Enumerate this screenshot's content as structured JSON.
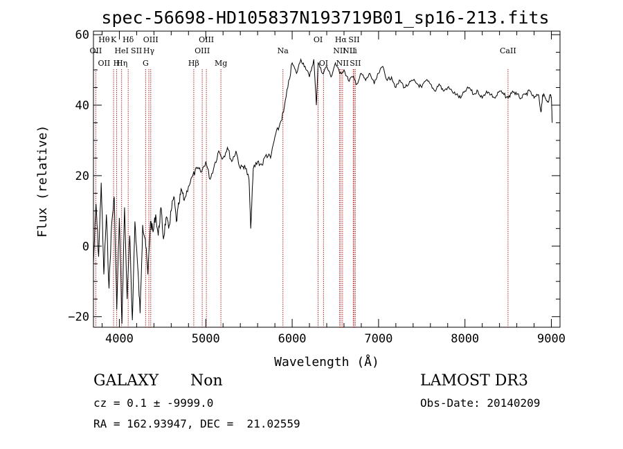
{
  "chart_data": {
    "type": "line",
    "title": "spec-56698-HD105837N193719B01_sp16-213.fits",
    "xlabel": "Wavelength (Å)",
    "ylabel": "Flux (relative)",
    "xlim": [
      3700,
      9100
    ],
    "ylim": [
      -23,
      61
    ],
    "xticks": [
      4000,
      5000,
      6000,
      7000,
      8000,
      9000
    ],
    "yticks": [
      -20,
      0,
      20,
      40,
      60
    ],
    "grid": false,
    "series": [
      {
        "x": [
          3700,
          3730,
          3760,
          3790,
          3820,
          3850,
          3880,
          3910,
          3940,
          3970,
          4000,
          4030,
          4060,
          4090,
          4120,
          4150,
          4180,
          4210,
          4240,
          4270,
          4300,
          4330,
          4360,
          4390,
          4420,
          4450,
          4480,
          4510,
          4540,
          4570,
          4600,
          4630,
          4660,
          4690,
          4720,
          4750,
          4800,
          4850,
          4900,
          4950,
          5000,
          5050,
          5100,
          5150,
          5200,
          5250,
          5300,
          5350,
          5400,
          5450,
          5500,
          5520,
          5550,
          5600,
          5650,
          5700,
          5750,
          5800,
          5850,
          5900,
          5950,
          6000,
          6050,
          6100,
          6150,
          6200,
          6250,
          6280,
          6300,
          6350,
          6400,
          6450,
          6500,
          6550,
          6600,
          6650,
          6700,
          6750,
          6800,
          6850,
          6900,
          6950,
          7000,
          7050,
          7100,
          7150,
          7200,
          7250,
          7300,
          7350,
          7400,
          7450,
          7500,
          7550,
          7600,
          7650,
          7700,
          7750,
          7800,
          7850,
          7900,
          7950,
          8000,
          8050,
          8100,
          8150,
          8200,
          8250,
          8300,
          8350,
          8400,
          8450,
          8500,
          8550,
          8600,
          8650,
          8700,
          8750,
          8800,
          8850,
          8880,
          8900,
          8930,
          8960,
          8990,
          9000,
          9010
        ],
        "values": [
          -5,
          12,
          -3,
          18,
          -8,
          9,
          -12,
          6,
          14,
          -18,
          8,
          -22,
          11,
          -15,
          3,
          -21,
          7,
          -5,
          -19,
          6,
          2,
          -8,
          7,
          4,
          9,
          3,
          11,
          2,
          8,
          5,
          10,
          14,
          7,
          12,
          16,
          13,
          17,
          20,
          22,
          21,
          24,
          19,
          23,
          27,
          25,
          28,
          24,
          27,
          22,
          23,
          19,
          5,
          22,
          24,
          23,
          26,
          25,
          31,
          34,
          38,
          45,
          52,
          49,
          53,
          51,
          48,
          53,
          40,
          52,
          49,
          51,
          48,
          52,
          49,
          50,
          47,
          48,
          46,
          49,
          47,
          49,
          46,
          49,
          51,
          47,
          48,
          45,
          47,
          45,
          46,
          47,
          46,
          45,
          47,
          46,
          44,
          46,
          44,
          45,
          44,
          43,
          42,
          44,
          45,
          43,
          44,
          42,
          44,
          43,
          42,
          44,
          43,
          42,
          44,
          43,
          42,
          43,
          44,
          42,
          43,
          38,
          43,
          42,
          41,
          43,
          42,
          35
        ]
      }
    ],
    "lines": [
      {
        "x": 3727,
        "label": "OII",
        "row": 2
      },
      {
        "x": 3933,
        "label": "K",
        "row": 1
      },
      {
        "x": 3968,
        "label": "H",
        "row": 3
      },
      {
        "x": 4026,
        "label": "HeI",
        "row": 2
      },
      {
        "x": 4102,
        "label": "Hδ",
        "row": 1
      },
      {
        "x": 4304,
        "label": "G",
        "row": 3
      },
      {
        "x": 4341,
        "label": "Hγ",
        "row": 2
      },
      {
        "x": 4363,
        "label": "OIII",
        "row": 1
      },
      {
        "x": 4861,
        "label": "Hβ",
        "row": 3
      },
      {
        "x": 4959,
        "label": "OIII",
        "row": 2
      },
      {
        "x": 5007,
        "label": "OIII",
        "row": 1
      },
      {
        "x": 5175,
        "label": "Mg",
        "row": 3
      },
      {
        "x": 5893,
        "label": "Na",
        "row": 2
      },
      {
        "x": 6300,
        "label": "OI",
        "row": 1
      },
      {
        "x": 6363,
        "label": "OI",
        "row": 3
      },
      {
        "x": 6548,
        "label": "NII",
        "row": 2
      },
      {
        "x": 6563,
        "label": "Hα",
        "row": 1
      },
      {
        "x": 6583,
        "label": "NII",
        "row": 3
      },
      {
        "x": 6707,
        "label": "Li",
        "row": 2
      },
      {
        "x": 6716,
        "label": "SII",
        "row": 1
      },
      {
        "x": 6731,
        "label": "SII",
        "row": 3
      },
      {
        "x": 8498,
        "label": "CaII",
        "row": 2
      }
    ],
    "extra_labels": [
      {
        "label": "OII",
        "row": 3,
        "anchor": "OII"
      },
      {
        "label": "Hθ",
        "row": 1,
        "anchor": "OII"
      },
      {
        "label": "Hη",
        "row": 3,
        "anchor": "K"
      },
      {
        "label": "SII",
        "row": 2,
        "anchor": "Hδ"
      },
      {
        "label": "NII",
        "row": 2,
        "anchor": "Hα"
      }
    ]
  },
  "info": {
    "class": "GALAXY",
    "subclass": "Non",
    "survey": "LAMOST DR3",
    "cz": "cz = 0.1 ± -9999.0",
    "obs_date": "Obs-Date: 20140209",
    "coords": "RA = 162.93947, DEC =  21.02559"
  }
}
